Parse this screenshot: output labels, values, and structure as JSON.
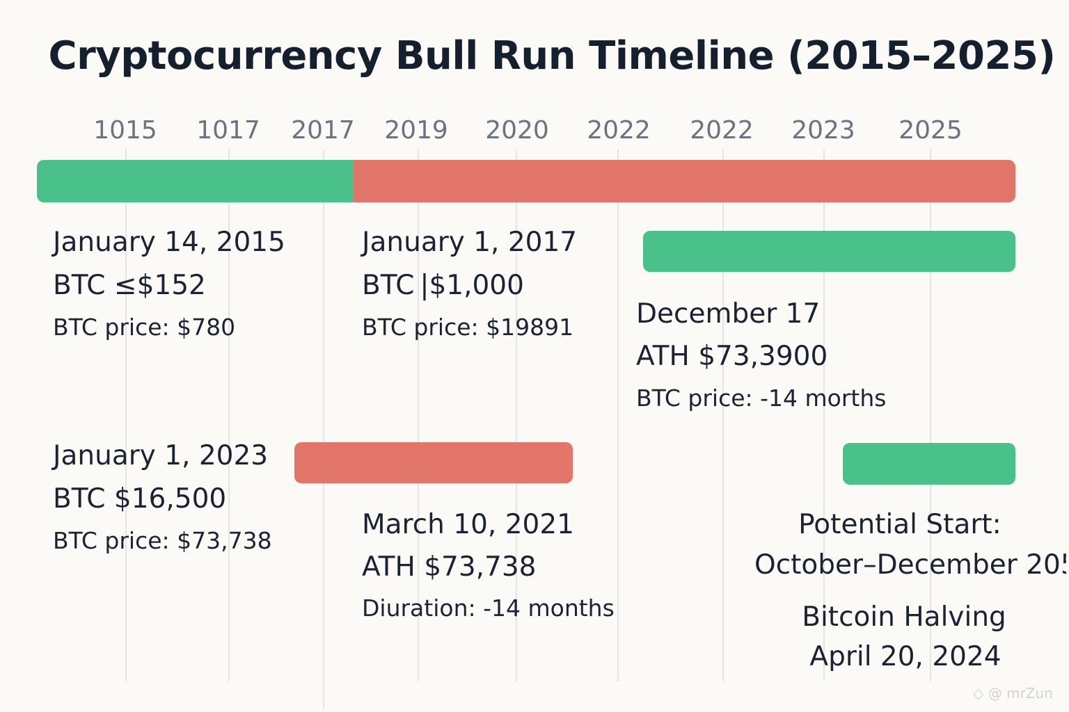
{
  "title": "Cryptocurrency Bull Run Timeline (2015–2025)",
  "axis_ticks": [
    "1015",
    "1017",
    "2017",
    "2019",
    "2020",
    "2022",
    "2022",
    "2023",
    "2025"
  ],
  "colors": {
    "bull": "#4ac08b",
    "bear": "#e2756a",
    "grid": "#e4e4e4",
    "tick": "#6b7280"
  },
  "events": {
    "e2015": {
      "date": "January 14, 2015",
      "btc": "BTC ≤$152",
      "price": "BTC price:  $780"
    },
    "e2017": {
      "date": "January 1, 2017",
      "btc": "BTC |$1,000",
      "price": "BTC price: $19891"
    },
    "eDec": {
      "date": "December 17",
      "ath": "ATH  $73,3900",
      "price": "BTC price: -14 morths"
    },
    "e2023": {
      "date": "January 1, 2023",
      "btc": "BTC  $16,500",
      "price": "BTC price: $73,738"
    },
    "e2021": {
      "date": "March 10, 2021",
      "ath": "ATH  $73,738",
      "duration": "Diuration: -14 months"
    },
    "potential": {
      "label": "Potential Start:",
      "range": "October–December 205"
    },
    "halving": {
      "label": "Bitcoin Halving",
      "date": "April 20, 2024"
    }
  },
  "watermark": "◇ @ mrZun"
}
